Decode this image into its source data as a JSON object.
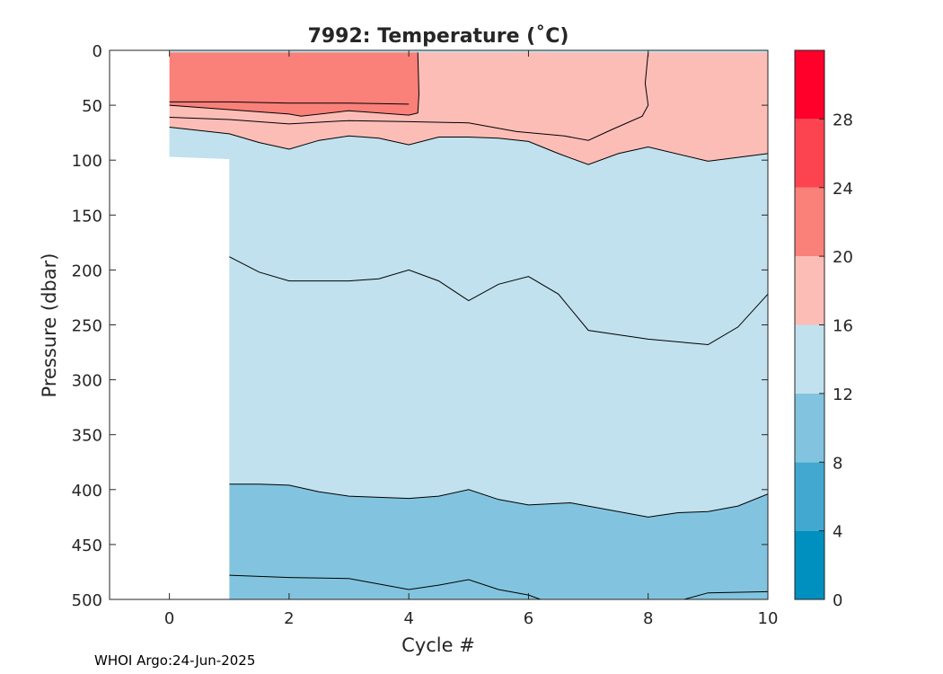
{
  "chart_data": {
    "type": "contour",
    "title": "7992:  Temperature (˚C)",
    "xlabel": "Cycle #",
    "ylabel": "Pressure (dbar)",
    "xlim": [
      -1,
      10
    ],
    "ylim": [
      0,
      500
    ],
    "y_reversed": true,
    "xticks": [
      0,
      2,
      4,
      6,
      8,
      10
    ],
    "yticks": [
      0,
      50,
      100,
      150,
      200,
      250,
      300,
      350,
      400,
      450,
      500
    ],
    "colorbar": {
      "range": [
        0,
        32
      ],
      "ticks": [
        0,
        4,
        8,
        12,
        16,
        20,
        24,
        28
      ],
      "bins": [
        {
          "lo": 0,
          "hi": 4,
          "color": "#0090bf"
        },
        {
          "lo": 4,
          "hi": 8,
          "color": "#42a8cf"
        },
        {
          "lo": 8,
          "hi": 12,
          "color": "#82c4df"
        },
        {
          "lo": 12,
          "hi": 16,
          "color": "#c0e1ed"
        },
        {
          "lo": 16,
          "hi": 20,
          "color": "#fdbdb7"
        },
        {
          "lo": 20,
          "hi": 24,
          "color": "#fa807a"
        },
        {
          "lo": 24,
          "hi": 28,
          "color": "#fc4450"
        },
        {
          "lo": 28,
          "hi": 32,
          "color": "#ff002b"
        }
      ]
    },
    "regions": [
      {
        "level": "20-24",
        "color": "#fa807a",
        "points": [
          [
            0,
            2
          ],
          [
            4.15,
            2
          ],
          [
            4.17,
            40
          ],
          [
            4.15,
            57
          ],
          [
            4,
            59
          ],
          [
            3,
            55
          ],
          [
            2.2,
            60
          ],
          [
            2,
            58
          ],
          [
            1,
            54
          ],
          [
            0,
            50
          ]
        ]
      },
      {
        "level": "16-20",
        "color": "#fdbdb7",
        "points": [
          [
            0,
            50
          ],
          [
            1,
            54
          ],
          [
            2,
            58
          ],
          [
            2.2,
            60
          ],
          [
            3,
            55
          ],
          [
            4,
            59
          ],
          [
            4.15,
            57
          ],
          [
            4.17,
            40
          ],
          [
            4.15,
            2
          ],
          [
            8,
            2
          ],
          [
            8,
            50
          ],
          [
            7.9,
            60
          ],
          [
            7.4,
            72
          ],
          [
            7,
            82
          ],
          [
            6.6,
            78
          ],
          [
            5.8,
            74
          ],
          [
            5,
            66
          ],
          [
            4,
            65
          ],
          [
            3,
            64
          ],
          [
            2,
            67
          ],
          [
            1,
            63
          ],
          [
            0,
            61
          ]
        ]
      },
      {
        "level": "16-20",
        "color": "#fdbdb7",
        "points": [
          [
            8,
            2
          ],
          [
            10,
            2
          ],
          [
            10,
            94
          ],
          [
            9,
            101
          ],
          [
            8,
            88
          ],
          [
            7.5,
            94
          ],
          [
            7,
            104
          ],
          [
            6.5,
            94
          ],
          [
            6,
            83
          ],
          [
            5.5,
            80
          ],
          [
            5,
            79
          ],
          [
            4.5,
            79
          ],
          [
            4,
            86
          ],
          [
            3.5,
            80
          ],
          [
            3,
            78
          ],
          [
            2.5,
            82
          ],
          [
            2,
            90
          ],
          [
            1.5,
            84
          ],
          [
            1,
            76
          ],
          [
            0,
            70
          ],
          [
            0,
            61
          ],
          [
            1,
            63
          ],
          [
            2,
            67
          ],
          [
            3,
            64
          ],
          [
            4,
            65
          ],
          [
            5,
            66
          ],
          [
            5.8,
            74
          ],
          [
            6.6,
            78
          ],
          [
            7,
            82
          ],
          [
            7.4,
            72
          ],
          [
            7.9,
            60
          ],
          [
            8,
            50
          ]
        ]
      },
      {
        "level": "8-12",
        "color": "#82c4df",
        "points": [
          [
            1,
            395
          ],
          [
            1.5,
            395
          ],
          [
            2,
            396
          ],
          [
            2.5,
            402
          ],
          [
            3,
            406
          ],
          [
            4,
            408
          ],
          [
            4.5,
            406
          ],
          [
            5,
            400
          ],
          [
            5.5,
            409
          ],
          [
            6,
            414
          ],
          [
            6.7,
            412
          ],
          [
            7.5,
            420
          ],
          [
            8,
            425
          ],
          [
            8.5,
            421
          ],
          [
            9,
            420
          ],
          [
            9.5,
            415
          ],
          [
            10,
            404
          ],
          [
            10,
            502
          ],
          [
            1,
            502
          ]
        ]
      }
    ],
    "contours": [
      {
        "level": 24,
        "points": [
          [
            0,
            47
          ],
          [
            1,
            47
          ],
          [
            2,
            48
          ],
          [
            3,
            48
          ],
          [
            4,
            49
          ]
        ]
      },
      {
        "level": 20,
        "points": [
          [
            0,
            50
          ],
          [
            1,
            54
          ],
          [
            2,
            58
          ],
          [
            2.2,
            60
          ],
          [
            3,
            55
          ],
          [
            4,
            59
          ],
          [
            4.15,
            57
          ],
          [
            4.17,
            40
          ],
          [
            4.15,
            2
          ]
        ]
      },
      {
        "level": 16,
        "points": [
          [
            0,
            61
          ],
          [
            1,
            63
          ],
          [
            2,
            67
          ],
          [
            3,
            64
          ],
          [
            4,
            65
          ],
          [
            5,
            66
          ],
          [
            5.8,
            74
          ],
          [
            6.6,
            78
          ],
          [
            7,
            82
          ],
          [
            7.4,
            72
          ],
          [
            7.9,
            60
          ],
          [
            8,
            50
          ],
          [
            7.95,
            30
          ],
          [
            8,
            2
          ]
        ]
      },
      {
        "level": 16,
        "points": [
          [
            0,
            70
          ],
          [
            1,
            76
          ],
          [
            1.5,
            84
          ],
          [
            2,
            90
          ],
          [
            2.5,
            82
          ],
          [
            3,
            78
          ],
          [
            3.5,
            80
          ],
          [
            4,
            86
          ],
          [
            4.5,
            79
          ],
          [
            5,
            79
          ],
          [
            5.5,
            80
          ],
          [
            6,
            83
          ],
          [
            6.5,
            94
          ],
          [
            7,
            104
          ],
          [
            7.5,
            94
          ],
          [
            8,
            88
          ],
          [
            9,
            101
          ],
          [
            10,
            94
          ]
        ]
      },
      {
        "level": 14,
        "points": [
          [
            1,
            188
          ],
          [
            1.5,
            202
          ],
          [
            2,
            210
          ],
          [
            3,
            210
          ],
          [
            3.5,
            208
          ],
          [
            4,
            200
          ],
          [
            4.5,
            210
          ],
          [
            5,
            228
          ],
          [
            5.5,
            213
          ],
          [
            6,
            206
          ],
          [
            6.5,
            222
          ],
          [
            7,
            255
          ],
          [
            8,
            263
          ],
          [
            9,
            268
          ],
          [
            9.5,
            252
          ],
          [
            10,
            222
          ]
        ]
      },
      {
        "level": 12,
        "points": [
          [
            1,
            395
          ],
          [
            1.5,
            395
          ],
          [
            2,
            396
          ],
          [
            2.5,
            402
          ],
          [
            3,
            406
          ],
          [
            4,
            408
          ],
          [
            4.5,
            406
          ],
          [
            5,
            400
          ],
          [
            5.5,
            409
          ],
          [
            6,
            414
          ],
          [
            6.7,
            412
          ],
          [
            7.5,
            420
          ],
          [
            8,
            425
          ],
          [
            8.5,
            421
          ],
          [
            9,
            420
          ],
          [
            9.5,
            415
          ],
          [
            10,
            404
          ]
        ]
      },
      {
        "level": 10,
        "points": [
          [
            1,
            478
          ],
          [
            2,
            480
          ],
          [
            3,
            481
          ],
          [
            3.5,
            486
          ],
          [
            4,
            491
          ],
          [
            4.5,
            487
          ],
          [
            5,
            482
          ],
          [
            5.5,
            491
          ],
          [
            6,
            496
          ],
          [
            6.2,
            500
          ]
        ]
      },
      {
        "level": 10,
        "points": [
          [
            8.6,
            500
          ],
          [
            9,
            494
          ],
          [
            10,
            493
          ]
        ]
      }
    ],
    "masked": [
      {
        "points": [
          [
            -1,
            -1
          ],
          [
            0,
            -1
          ],
          [
            0,
            97
          ],
          [
            1,
            99
          ],
          [
            1,
            502
          ],
          [
            -1,
            502
          ]
        ]
      }
    ],
    "footer": "WHOI Argo:24-Jun-2025"
  }
}
